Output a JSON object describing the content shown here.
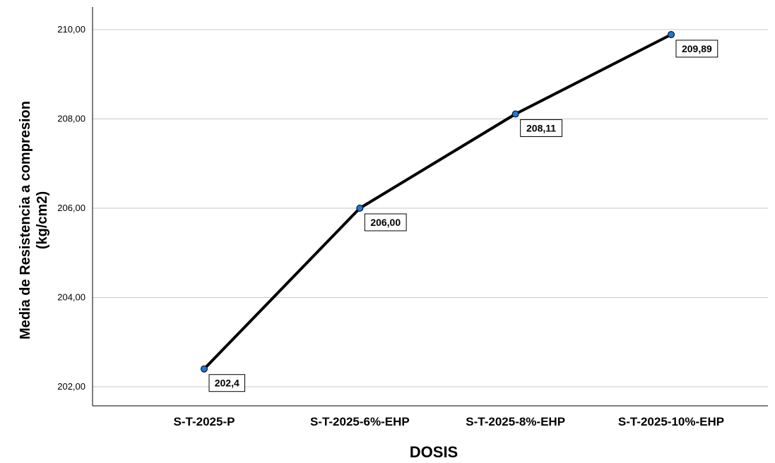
{
  "chart_data": {
    "type": "line",
    "title": "",
    "xlabel": "DOSIS",
    "ylabel_lines": [
      "Media de Resistencia a compresion",
      "(kg/cm2)"
    ],
    "categories": [
      "S-T-2025-P",
      "S-T-2025-6%-EHP",
      "S-T-2025-8%-EHP",
      "S-T-2025-10%-EHP"
    ],
    "series": [
      {
        "values": [
          202.4,
          206.0,
          208.11,
          209.89
        ],
        "data_labels": [
          "202,4",
          "206,00",
          "208,11",
          "209,89"
        ],
        "line_color": "#000000",
        "marker_color": "#1f77d4"
      }
    ],
    "yticks": [
      202,
      204,
      206,
      208,
      210
    ],
    "ytick_labels": [
      "202,00",
      "204,00",
      "206,00",
      "208,00",
      "210,00"
    ],
    "ylim": [
      201.6,
      210.5
    ],
    "grid": "horizontal",
    "legend": "none"
  }
}
